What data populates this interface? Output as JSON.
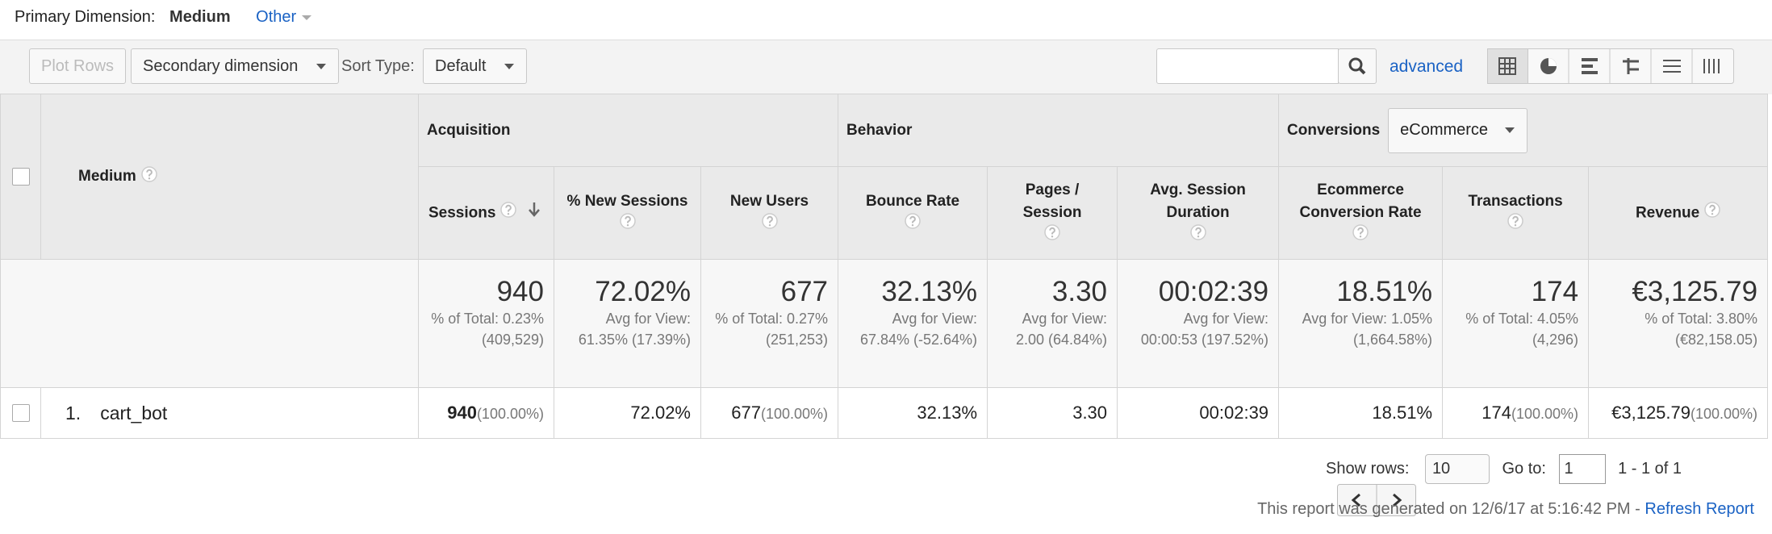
{
  "primary_dimension": {
    "label": "Primary Dimension:",
    "active": "Medium",
    "other": "Other"
  },
  "toolbar": {
    "plot_rows": "Plot Rows",
    "secondary_dimension": "Secondary dimension",
    "sort_type_label": "Sort Type:",
    "sort_type": "Default",
    "advanced": "advanced"
  },
  "table": {
    "dimension_header": "Medium",
    "groups": [
      {
        "name": "Acquisition"
      },
      {
        "name": "Behavior"
      },
      {
        "name": "Conversions",
        "selector": "eCommerce"
      }
    ],
    "columns": [
      "Sessions",
      "% New Sessions",
      "New Users",
      "Bounce Rate",
      "Pages / Session",
      "Avg. Session Duration",
      "Ecommerce Conversion Rate",
      "Transactions",
      "Revenue"
    ],
    "totals": [
      {
        "value": "940",
        "detail": "% of Total: 0.23% (409,529)"
      },
      {
        "value": "72.02%",
        "detail": "Avg for View: 61.35% (17.39%)"
      },
      {
        "value": "677",
        "detail": "% of Total: 0.27% (251,253)"
      },
      {
        "value": "32.13%",
        "detail": "Avg for View: 67.84% (-52.64%)"
      },
      {
        "value": "3.30",
        "detail": "Avg for View: 2.00 (64.84%)"
      },
      {
        "value": "00:02:39",
        "detail": "Avg for View: 00:00:53 (197.52%)"
      },
      {
        "value": "18.51%",
        "detail": "Avg for View: 1.05% (1,664.58%)"
      },
      {
        "value": "174",
        "detail": "% of Total: 4.05% (4,296)"
      },
      {
        "value": "€3,125.79",
        "detail": "% of Total: 3.80% (€82,158.05)"
      }
    ],
    "rows": [
      {
        "index": "1.",
        "name": "cart_bot",
        "cells": [
          {
            "value": "940",
            "share": "(100.00%)"
          },
          {
            "value": "72.02%"
          },
          {
            "value": "677",
            "share": "(100.00%)"
          },
          {
            "value": "32.13%"
          },
          {
            "value": "3.30"
          },
          {
            "value": "00:02:39"
          },
          {
            "value": "18.51%"
          },
          {
            "value": "174",
            "share": "(100.00%)"
          },
          {
            "value": "€3,125.79",
            "share": "(100.00%)"
          }
        ]
      }
    ]
  },
  "pagination": {
    "show_rows_label": "Show rows:",
    "show_rows": "10",
    "goto_label": "Go to:",
    "goto": "1",
    "range": "1 - 1 of 1"
  },
  "footer": {
    "generated": "This report was generated on 12/6/17 at 5:16:42 PM - ",
    "refresh": "Refresh Report"
  }
}
